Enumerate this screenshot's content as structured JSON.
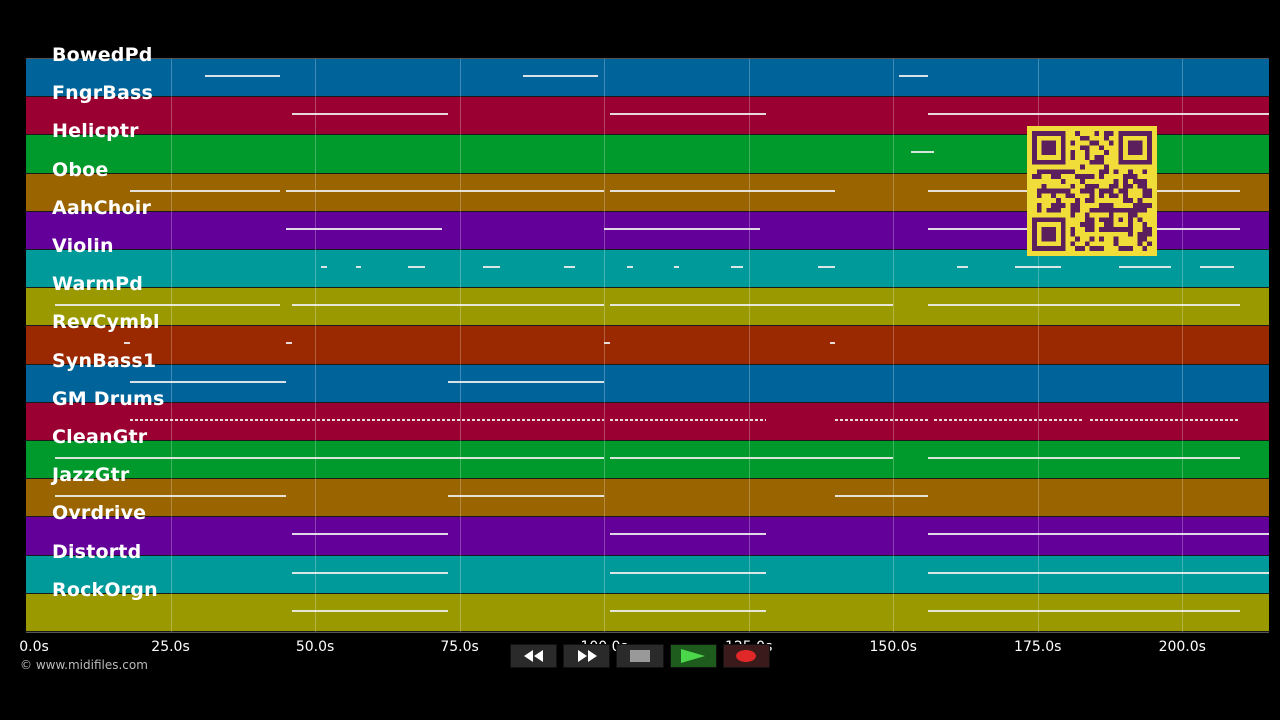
{
  "tracks": [
    {
      "name": "BowedPd",
      "color": "#00649a"
    },
    {
      "name": "FngrBass",
      "color": "#9a0032"
    },
    {
      "name": "Helicptr",
      "color": "#009a2c"
    },
    {
      "name": "Oboe",
      "color": "#9a6400"
    },
    {
      "name": "AahChoir",
      "color": "#64009a"
    },
    {
      "name": "Violin",
      "color": "#009a9a"
    },
    {
      "name": "WarmPd",
      "color": "#9a9a00"
    },
    {
      "name": "RevCymbl",
      "color": "#9a2800"
    },
    {
      "name": "SynBass1",
      "color": "#00649a"
    },
    {
      "name": "GM Drums",
      "color": "#9a0032"
    },
    {
      "name": "CleanGtr",
      "color": "#009a2c"
    },
    {
      "name": "JazzGtr",
      "color": "#9a6400"
    },
    {
      "name": "Ovrdrive",
      "color": "#64009a"
    },
    {
      "name": "Distortd",
      "color": "#009a9a"
    },
    {
      "name": "RockOrgn",
      "color": "#9a9a00"
    }
  ],
  "timeline": {
    "max_seconds": 215,
    "ticks": [
      {
        "label": "0.0s",
        "value": 0
      },
      {
        "label": "25.0s",
        "value": 25
      },
      {
        "label": "50.0s",
        "value": 50
      },
      {
        "label": "75.0s",
        "value": 75
      },
      {
        "label": "100.0s",
        "value": 100
      },
      {
        "label": "125.0s",
        "value": 125
      },
      {
        "label": "150.0s",
        "value": 150
      },
      {
        "label": "175.0s",
        "value": 175
      },
      {
        "label": "200.0s",
        "value": 200
      }
    ]
  },
  "note_segments": [
    {
      "lane": 0,
      "segments": [
        [
          31,
          44
        ],
        [
          86,
          99
        ],
        [
          151,
          156
        ]
      ]
    },
    {
      "lane": 1,
      "segments": [
        [
          46,
          73
        ],
        [
          101,
          128
        ],
        [
          156,
          215
        ]
      ]
    },
    {
      "lane": 2,
      "segments": [
        [
          153,
          157
        ]
      ]
    },
    {
      "lane": 3,
      "segments": [
        [
          18,
          44
        ],
        [
          45,
          100
        ],
        [
          101,
          140
        ],
        [
          156,
          210
        ]
      ]
    },
    {
      "lane": 4,
      "segments": [
        [
          45,
          72
        ],
        [
          100,
          127
        ],
        [
          156,
          210
        ]
      ]
    },
    {
      "lane": 5,
      "segments": [
        [
          51,
          52
        ],
        [
          57,
          58
        ],
        [
          66,
          69
        ],
        [
          79,
          82
        ],
        [
          93,
          95
        ],
        [
          104,
          105
        ],
        [
          112,
          113
        ],
        [
          122,
          124
        ],
        [
          137,
          140
        ],
        [
          161,
          163
        ],
        [
          171,
          179
        ],
        [
          189,
          198
        ],
        [
          203,
          209
        ]
      ]
    },
    {
      "lane": 6,
      "segments": [
        [
          5,
          44
        ],
        [
          46,
          100
        ],
        [
          101,
          150
        ],
        [
          156,
          210
        ]
      ]
    },
    {
      "lane": 7,
      "segments": [
        [
          17,
          18
        ],
        [
          45,
          46
        ],
        [
          100,
          101
        ],
        [
          139,
          140
        ]
      ]
    },
    {
      "lane": 8,
      "segments": [
        [
          18,
          45
        ],
        [
          73,
          100
        ]
      ]
    },
    {
      "lane": 9,
      "segments": [
        [
          18,
          46
        ],
        [
          46,
          100
        ],
        [
          101,
          128
        ],
        [
          140,
          156
        ],
        [
          157,
          183
        ],
        [
          184,
          210
        ]
      ],
      "dotted": true
    },
    {
      "lane": 10,
      "segments": [
        [
          5,
          46
        ],
        [
          46,
          100
        ],
        [
          101,
          150
        ],
        [
          156,
          210
        ]
      ]
    },
    {
      "lane": 11,
      "segments": [
        [
          5,
          45
        ],
        [
          73,
          100
        ],
        [
          140,
          156
        ]
      ]
    },
    {
      "lane": 12,
      "segments": [
        [
          46,
          73
        ],
        [
          101,
          128
        ],
        [
          156,
          215
        ]
      ]
    },
    {
      "lane": 13,
      "segments": [
        [
          46,
          73
        ],
        [
          101,
          128
        ],
        [
          156,
          215
        ]
      ]
    },
    {
      "lane": 14,
      "segments": [
        [
          46,
          73
        ],
        [
          101,
          128
        ],
        [
          156,
          210
        ]
      ]
    }
  ],
  "copyright": "© www.midifiles.com",
  "controls": [
    {
      "name": "rewind-icon"
    },
    {
      "name": "fast-forward-icon"
    },
    {
      "name": "stop-icon"
    },
    {
      "name": "play-icon"
    },
    {
      "name": "record-icon"
    }
  ],
  "qr_colors": {
    "background": "#f0dd3a",
    "modules": "#5a1f5c"
  }
}
